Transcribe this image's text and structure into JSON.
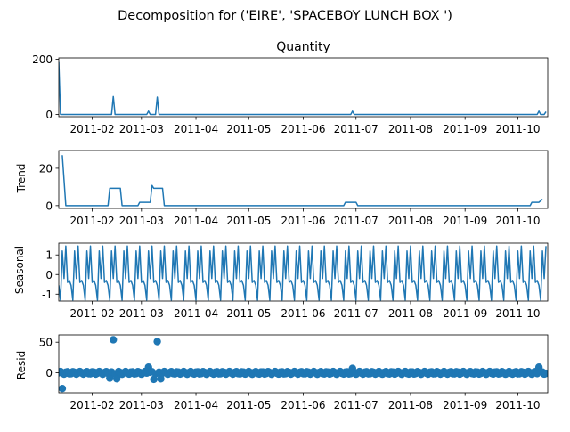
{
  "figure": {
    "suptitle": "Decomposition for ('EIRE', 'SPACEBOY LUNCH BOX ')"
  },
  "chart_data": [
    {
      "type": "line",
      "title": "Quantity",
      "ylabel": "",
      "xlim": [
        "2011-01-13",
        "2011-10-18"
      ],
      "ylim": [
        -8,
        205
      ],
      "yticks": [
        0,
        200
      ],
      "xticks": [
        "2011-02",
        "2011-03",
        "2011-04",
        "2011-05",
        "2011-06",
        "2011-07",
        "2011-08",
        "2011-09",
        "2011-10"
      ],
      "series": [
        {
          "points": [
            [
              "2011-01-13",
              190
            ],
            [
              "2011-01-14",
              0
            ],
            [
              "2011-02-12",
              0
            ],
            [
              "2011-02-13",
              65
            ],
            [
              "2011-02-14",
              0
            ],
            [
              "2011-03-04",
              0
            ],
            [
              "2011-03-05",
              12
            ],
            [
              "2011-03-06",
              0
            ],
            [
              "2011-03-09",
              0
            ],
            [
              "2011-03-10",
              63
            ],
            [
              "2011-03-11",
              0
            ],
            [
              "2011-06-28",
              0
            ],
            [
              "2011-06-29",
              12
            ],
            [
              "2011-06-30",
              0
            ],
            [
              "2011-10-12",
              0
            ],
            [
              "2011-10-13",
              12
            ],
            [
              "2011-10-14",
              0
            ],
            [
              "2011-10-16",
              0
            ],
            [
              "2011-10-17",
              10
            ]
          ]
        }
      ]
    },
    {
      "type": "line",
      "title": "",
      "ylabel": "Trend",
      "xlim": [
        "2011-01-13",
        "2011-10-18"
      ],
      "ylim": [
        -1.5,
        29.5
      ],
      "yticks": [
        0,
        20
      ],
      "xticks": [
        "2011-02",
        "2011-03",
        "2011-04",
        "2011-05",
        "2011-06",
        "2011-07",
        "2011-08",
        "2011-09",
        "2011-10"
      ],
      "series": [
        {
          "points": [
            [
              "2011-01-15",
              27
            ],
            [
              "2011-01-17",
              0
            ],
            [
              "2011-02-10",
              0
            ],
            [
              "2011-02-11",
              9.3
            ],
            [
              "2011-02-17",
              9.3
            ],
            [
              "2011-02-18",
              0
            ],
            [
              "2011-02-27",
              0
            ],
            [
              "2011-02-28",
              1.8
            ],
            [
              "2011-03-06",
              1.8
            ],
            [
              "2011-03-07",
              10.8
            ],
            [
              "2011-03-08",
              9.3
            ],
            [
              "2011-03-13",
              9.3
            ],
            [
              "2011-03-14",
              0
            ],
            [
              "2011-06-24",
              0
            ],
            [
              "2011-06-25",
              1.8
            ],
            [
              "2011-07-01",
              1.8
            ],
            [
              "2011-07-02",
              0
            ],
            [
              "2011-10-08",
              0
            ],
            [
              "2011-10-09",
              1.8
            ],
            [
              "2011-10-13",
              1.8
            ],
            [
              "2011-10-15",
              3.5
            ]
          ]
        }
      ]
    },
    {
      "type": "line",
      "title": "",
      "ylabel": "Seasonal",
      "xlim": [
        "2011-01-13",
        "2011-10-18"
      ],
      "ylim": [
        -1.35,
        1.6
      ],
      "yticks": [
        -1,
        0,
        1
      ],
      "xticks": [
        "2011-02",
        "2011-03",
        "2011-04",
        "2011-05",
        "2011-06",
        "2011-07",
        "2011-08",
        "2011-09",
        "2011-10"
      ],
      "period_days": 7,
      "pattern": [
        -0.55,
        -1.3,
        1.2,
        -0.2,
        1.45,
        -0.4,
        -0.3
      ],
      "start": "2011-01-13",
      "end": "2011-10-17"
    },
    {
      "type": "scatter",
      "title": "",
      "ylabel": "Resid",
      "xlim": [
        "2011-01-13",
        "2011-10-18"
      ],
      "ylim": [
        -33,
        62
      ],
      "yticks": [
        0,
        50
      ],
      "xticks": [
        "2011-02",
        "2011-03",
        "2011-04",
        "2011-05",
        "2011-06",
        "2011-07",
        "2011-08",
        "2011-09",
        "2011-10"
      ],
      "baseline": 0,
      "outliers": [
        [
          "2011-01-15",
          -26
        ],
        [
          "2011-02-11",
          -9
        ],
        [
          "2011-02-13",
          54
        ],
        [
          "2011-02-15",
          -10
        ],
        [
          "2011-03-05",
          9
        ],
        [
          "2011-03-08",
          -11
        ],
        [
          "2011-03-10",
          51
        ],
        [
          "2011-03-12",
          -10
        ],
        [
          "2011-06-29",
          7
        ],
        [
          "2011-10-13",
          9
        ]
      ],
      "near_zero_range": [
        -2.5,
        2
      ]
    }
  ]
}
